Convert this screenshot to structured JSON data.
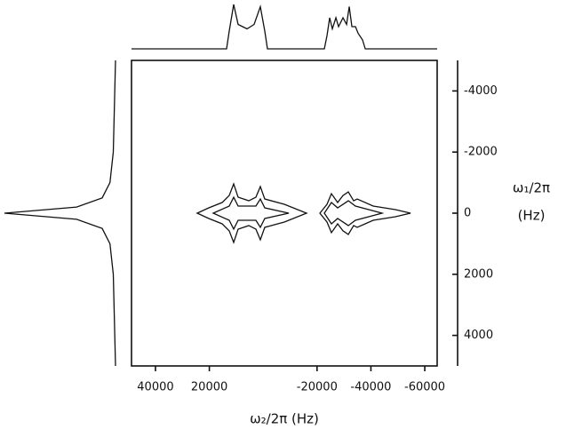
{
  "chart_data": {
    "type": "contour",
    "xlabel": "ω₂/2π (Hz)",
    "ylabel": "ω₁/2π",
    "yunit": "(Hz)",
    "xlim": [
      48900,
      -64600
    ],
    "xticks": [
      40000,
      20000,
      -20000,
      -40000,
      -60000
    ],
    "ylim": [
      -5000,
      5000
    ],
    "yticks": [
      -4000,
      -2000,
      0,
      2000,
      4000
    ],
    "top_projection": {
      "x": [
        48900,
        13600,
        12610,
        10960,
        9310,
        6010,
        3370,
        1060,
        -590,
        -1580,
        -22710,
        -23700,
        -24690,
        -25680,
        -27000,
        -27990,
        -29640,
        -30960,
        -31950,
        -32940,
        -34260,
        -35250,
        -36900,
        -37890,
        -64600
      ],
      "values": [
        0,
        0,
        0.4,
        1.0,
        0.55,
        0.45,
        0.55,
        0.95,
        0.4,
        0,
        0,
        0.3,
        0.7,
        0.45,
        0.7,
        0.5,
        0.7,
        0.55,
        0.95,
        0.5,
        0.5,
        0.35,
        0.2,
        0,
        0
      ]
    },
    "left_projection": {
      "y": [
        -5000,
        -2000,
        -1000,
        -500,
        -200,
        0,
        200,
        500,
        1000,
        2000,
        5000
      ],
      "values": [
        0,
        0.02,
        0.05,
        0.12,
        0.35,
        1,
        0.35,
        0.12,
        0.05,
        0.02,
        0
      ]
    },
    "contours": [
      {
        "x": [
          24490,
          20200,
          15250,
          12610,
          10960,
          9310,
          5350,
          2710,
          1060,
          -590,
          -7850,
          -16100
        ],
        "halfwidth": [
          0,
          174,
          348,
          580,
          957,
          522,
          406,
          522,
          870,
          464,
          290,
          0
        ]
      },
      {
        "x": [
          18550,
          12610,
          10960,
          9310,
          2710,
          1060,
          -590,
          -9500
        ],
        "halfwidth": [
          0,
          232,
          522,
          232,
          232,
          464,
          174,
          0
        ]
      },
      {
        "x": [
          -21050,
          -23690,
          -25340,
          -27650,
          -29630,
          -31610,
          -33590,
          -34910,
          -40850,
          -49100,
          -54710
        ],
        "halfwidth": [
          0,
          290,
          638,
          348,
          580,
          696,
          406,
          464,
          232,
          116,
          0
        ]
      },
      {
        "x": [
          -22700,
          -25340,
          -27650,
          -29630,
          -31610,
          -34250,
          -44150
        ],
        "halfwidth": [
          0,
          348,
          174,
          290,
          406,
          232,
          0
        ]
      }
    ]
  }
}
